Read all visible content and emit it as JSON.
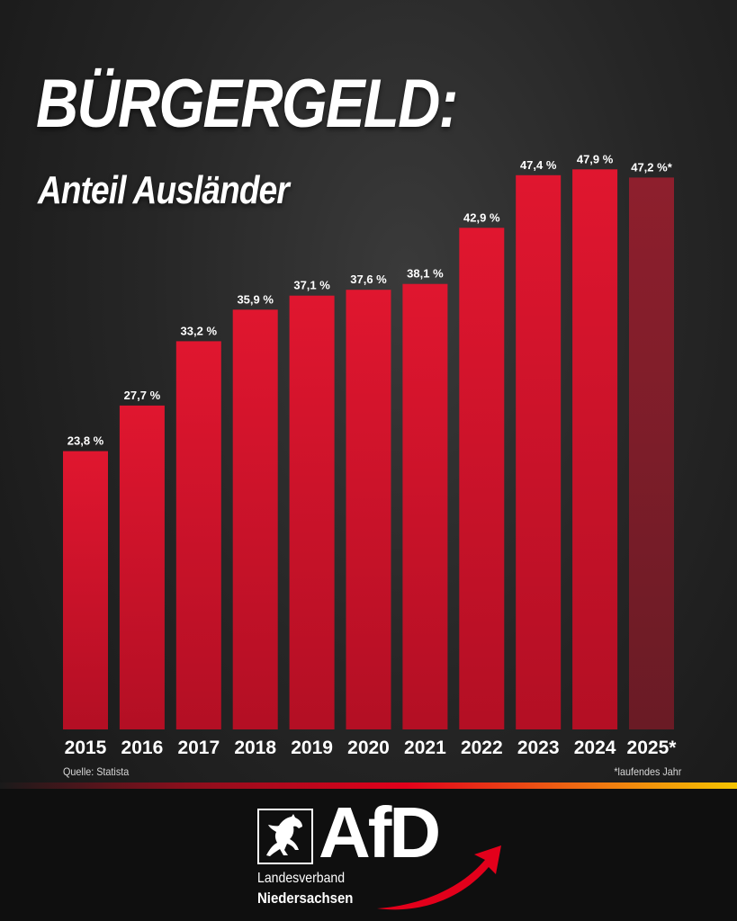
{
  "header": {
    "title": "BÜRGERGELD:",
    "subtitle": "Anteil Ausländer"
  },
  "chart_data": {
    "type": "bar",
    "categories": [
      "2015",
      "2016",
      "2017",
      "2018",
      "2019",
      "2020",
      "2021",
      "2022",
      "2023",
      "2024",
      "2025*"
    ],
    "values": [
      23.8,
      27.7,
      33.2,
      35.9,
      37.1,
      37.6,
      38.1,
      42.9,
      47.4,
      47.9,
      47.2
    ],
    "value_labels": [
      "23,8 %",
      "27,7 %",
      "33,2 %",
      "35,9 %",
      "37,1 %",
      "37,6 %",
      "38,1 %",
      "42,9 %",
      "47,4 %",
      "47,9 %",
      "47,2 %*"
    ],
    "title": "BÜRGERGELD:",
    "subtitle": "Anteil Ausländer",
    "xlabel": "",
    "ylabel": "",
    "ylim": [
      0,
      50
    ],
    "grid": false,
    "legend": "none",
    "bar_color": "#d0142c",
    "highlight_bar_color": "#7d1e2a",
    "highlighted_category": "2025*"
  },
  "notes": {
    "source": "Quelle: Statista",
    "footnote": "*laufendes Jahr"
  },
  "footer": {
    "logo_text": "AfD",
    "region_line1": "Landesverband",
    "region_line2": "Niedersachsen",
    "emblem_icon": "horse-emblem-icon",
    "arrow_icon": "swoosh-arrow-icon",
    "accent_color": "#e3001b"
  }
}
